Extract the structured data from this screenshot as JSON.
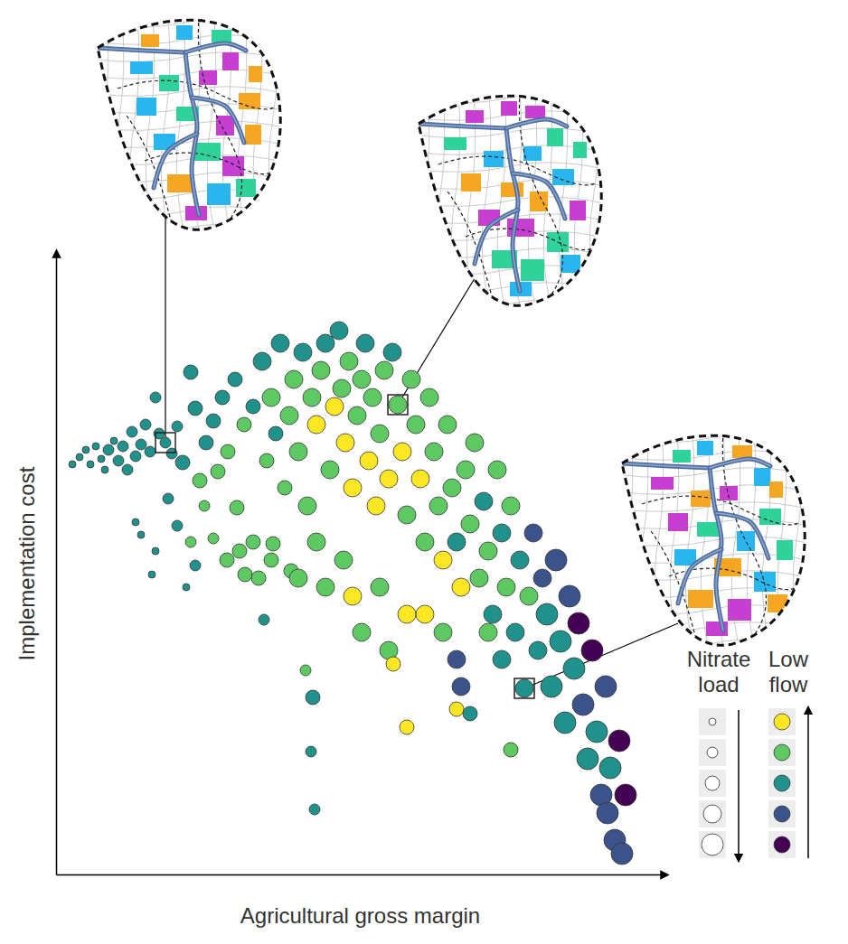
{
  "chart_data": {
    "type": "scatter",
    "x_label": "Agricultural gross margin",
    "y_label": "Implementation cost",
    "xlim": [
      0,
      673
    ],
    "ylim": [
      0,
      688
    ],
    "xticks": [],
    "yticks": [],
    "tick_labels": false,
    "marker": "circle",
    "legend": "bottom-right",
    "series": [
      {
        "x": [
          18,
          26,
          33,
          38,
          44,
          50,
          54,
          58,
          64,
          69,
          74,
          79,
          84,
          88,
          94,
          99,
          104,
          110,
          114,
          121,
          128,
          134,
          140,
          149,
          154,
          159,
          166,
          174,
          179,
          184,
          190,
          88,
          94,
          106,
          110,
          124,
          134,
          144,
          149,
          154,
          164,
          174,
          189,
          200,
          209,
          224,
          230,
          240,
          260,
          276,
          284,
          282,
          286,
          198,
          208,
          218,
          228,
          233,
          238,
          243,
          248,
          253,
          258,
          263,
          268,
          273,
          278,
          283,
          288,
          293,
          298,
          303,
          308,
          313,
          316,
          320,
          324,
          328,
          333,
          338,
          342,
          346,
          350,
          354,
          358,
          363,
          368,
          372,
          378,
          383,
          388,
          393,
          398,
          403,
          408,
          413,
          418,
          423,
          428,
          433,
          438,
          443,
          448,
          453,
          458,
          463,
          468,
          473,
          478,
          483,
          488,
          493,
          498,
          503,
          508,
          513,
          518,
          523,
          528,
          533,
          538,
          543,
          548,
          553,
          558,
          563,
          568,
          573,
          578,
          583,
          588,
          593,
          598,
          603,
          608,
          610,
          613,
          618,
          623,
          626,
          630,
          203,
          218,
          238,
          268,
          298,
          328,
          358,
          388,
          338,
          368,
          373,
          388,
          443,
          443,
          448,
          458,
          503,
          408,
          428,
          478,
          493,
          318,
          288
        ],
        "y": [
          454,
          462,
          470,
          454,
          474,
          460,
          448,
          470,
          480,
          458,
          474,
          448,
          490,
          463,
          476,
          498,
          468,
          528,
          488,
          478,
          466,
          496,
          456,
          556,
          516,
          436,
          478,
          502,
          446,
          528,
          468,
          390,
          376,
          332,
          358,
          416,
          386,
          318,
          368,
          342,
          408,
          372,
          348,
          406,
          332,
          328,
          282,
          366,
          336,
          226,
          196,
          136,
          72,
          548,
          498,
          518,
          568,
          458,
          528,
          488,
          588,
          428,
          508,
          548,
          468,
          578,
          408,
          528,
          498,
          558,
          588,
          448,
          518,
          602,
          538,
          478,
          568,
          428,
          508,
          548,
          588,
          458,
          528,
          408,
          488,
          558,
          438,
          578,
          520,
          468,
          398,
          548,
          498,
          438,
          368,
          528,
          468,
          408,
          348,
          498,
          428,
          368,
          318,
          448,
          388,
          478,
          328,
          413,
          358,
          288,
          448,
          378,
          318,
          408,
          268,
          348,
          206,
          308,
          378,
          248,
          328,
          288,
          208,
          348,
          258,
          168,
          308,
          228,
          278,
          188,
          128,
          248,
          158,
          88,
          208,
          68,
          118,
          38,
          148,
          23,
          88,
          358,
          368,
          348,
          328,
          318,
          308,
          318,
          288,
          268,
          248,
          233,
          163,
          183,
          238,
          208,
          178,
          138,
          288,
          268,
          268,
          238,
          348,
          368
        ],
        "size": [
          1,
          1,
          1,
          1,
          1,
          1,
          1,
          2,
          1,
          2,
          2,
          2,
          2,
          2,
          2,
          2,
          2,
          2,
          2,
          2,
          2,
          2,
          3,
          3,
          3,
          3,
          3,
          3,
          3,
          3,
          3,
          1,
          1,
          1,
          1,
          2,
          2,
          1,
          2,
          2,
          2,
          2,
          3,
          3,
          3,
          3,
          2,
          3,
          3,
          2,
          3,
          2,
          2,
          3,
          3,
          3,
          4,
          3,
          4,
          3,
          4,
          3,
          4,
          4,
          4,
          4,
          4,
          4,
          4,
          4,
          4,
          4,
          4,
          4,
          4,
          4,
          4,
          4,
          4,
          4,
          4,
          4,
          4,
          4,
          4,
          4,
          4,
          4,
          4,
          4,
          4,
          4,
          4,
          4,
          4,
          4,
          4,
          4,
          4,
          4,
          4,
          4,
          4,
          4,
          4,
          4,
          4,
          4,
          4,
          4,
          4,
          4,
          4,
          4,
          4,
          4,
          4,
          4,
          4,
          4,
          4,
          5,
          5,
          5,
          5,
          5,
          5,
          5,
          5,
          5,
          5,
          5,
          5,
          5,
          5,
          5,
          5,
          5,
          5,
          5,
          5,
          3,
          3,
          3,
          4,
          4,
          4,
          4,
          4,
          4,
          4,
          3,
          3,
          3,
          4,
          4,
          3,
          3,
          4,
          4,
          4,
          4,
          4,
          4
        ],
        "low_flow": [
          3,
          3,
          3,
          3,
          3,
          3,
          3,
          3,
          3,
          3,
          3,
          3,
          3,
          3,
          3,
          3,
          3,
          3,
          3,
          3,
          3,
          3,
          3,
          3,
          3,
          4,
          3,
          3,
          4,
          3,
          4,
          3,
          3,
          3,
          3,
          3,
          3,
          3,
          4,
          3,
          4,
          4,
          4,
          4,
          4,
          4,
          3,
          4,
          4,
          4,
          3,
          3,
          3,
          3,
          4,
          3,
          3,
          4,
          4,
          3,
          3,
          4,
          4,
          4,
          4,
          3,
          4,
          4,
          5,
          4,
          3,
          4,
          5,
          3,
          4,
          5,
          4,
          5,
          4,
          4,
          3,
          5,
          4,
          5,
          4,
          4,
          5,
          3,
          4,
          5,
          4,
          4,
          4,
          5,
          4,
          4,
          4,
          4,
          5,
          4,
          4,
          3,
          5,
          4,
          4,
          4,
          4,
          3,
          4,
          3,
          4,
          3,
          4,
          4,
          3,
          3,
          3,
          4,
          2,
          3,
          2,
          3,
          3,
          2,
          3,
          3,
          2,
          3,
          1,
          2,
          3,
          1,
          3,
          2,
          2,
          2,
          3,
          2,
          1,
          2,
          1,
          4,
          4,
          4,
          4,
          4,
          5,
          4,
          5,
          4,
          4,
          5,
          5,
          5,
          2,
          2,
          3,
          4,
          5,
          4,
          4,
          3,
          4,
          4
        ]
      }
    ],
    "highlights": {
      "x": [
        121,
        378,
        518
      ],
      "y": [
        478,
        520,
        206
      ]
    },
    "size_legend": {
      "title": "Nitrate load",
      "values": [
        1,
        2,
        3,
        4,
        5
      ]
    },
    "color_legend": {
      "title": "Low flow",
      "values": [
        5,
        4,
        3,
        2,
        1
      ],
      "colors": [
        "#fde725",
        "#5ec962",
        "#21918c",
        "#3b528b",
        "#440154"
      ]
    }
  }
}
